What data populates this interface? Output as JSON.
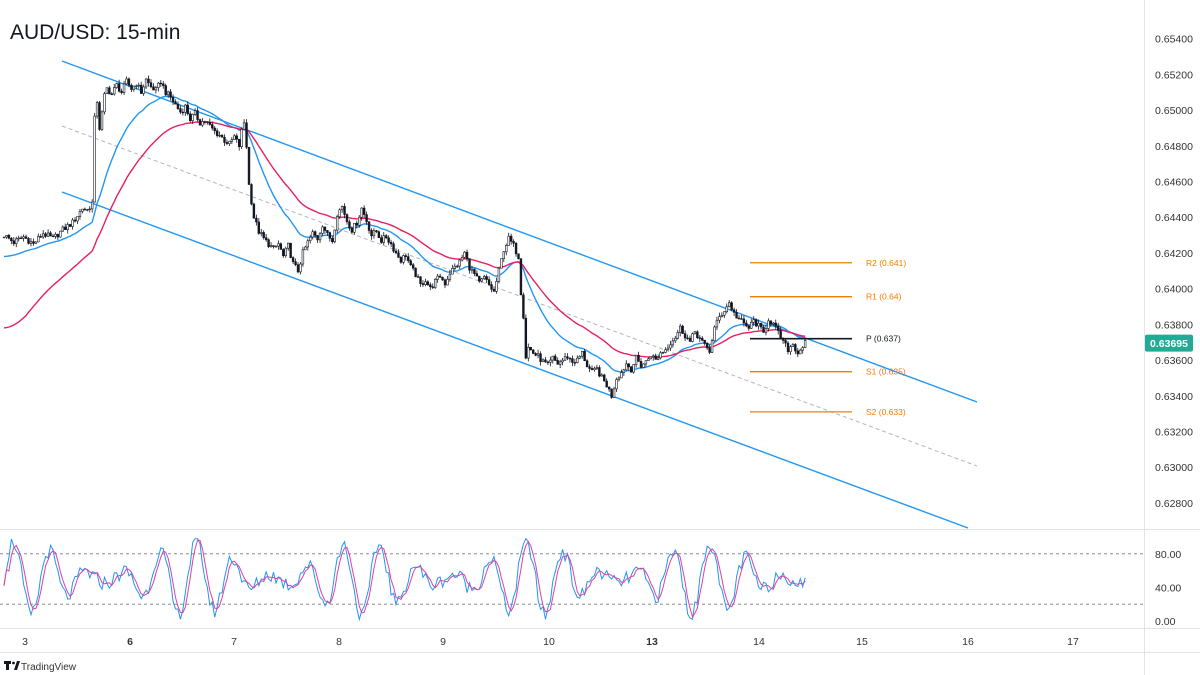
{
  "title": "AUD/USD: 15-min",
  "brand": "TradingView",
  "chart_data": {
    "type": "candlestick",
    "price_axis": {
      "range": [
        0.6271,
        0.6551
      ],
      "ticks": [
        "0.65400",
        "0.65200",
        "0.65000",
        "0.64800",
        "0.64600",
        "0.64400",
        "0.64200",
        "0.64000",
        "0.63800",
        "0.63600",
        "0.63400",
        "0.63200",
        "0.63000",
        "0.62800"
      ],
      "current_price": "0.63695",
      "current_price_color": "#22ab94"
    },
    "date_axis": {
      "ticks": [
        {
          "label": "3",
          "bold": false
        },
        {
          "label": "6",
          "bold": true
        },
        {
          "label": "7",
          "bold": false
        },
        {
          "label": "8",
          "bold": false
        },
        {
          "label": "9",
          "bold": false
        },
        {
          "label": "10",
          "bold": false
        },
        {
          "label": "13",
          "bold": true
        },
        {
          "label": "14",
          "bold": false
        },
        {
          "label": "15",
          "bold": false
        },
        {
          "label": "16",
          "bold": false
        },
        {
          "label": "17",
          "bold": false
        }
      ]
    },
    "pivots": [
      {
        "label": "R2 (0.641)",
        "value": 0.64145,
        "color": "#f57c00"
      },
      {
        "label": "R1 (0.64)",
        "value": 0.63955,
        "color": "#f57c00"
      },
      {
        "label": "P (0.637)",
        "value": 0.6372,
        "color": "#131722"
      },
      {
        "label": "S1 (0.635)",
        "value": 0.63535,
        "color": "#f57c00"
      },
      {
        "label": "S2 (0.633)",
        "value": 0.6331,
        "color": "#f57c00"
      }
    ],
    "price_path": [
      [
        0,
        0.643
      ],
      [
        4,
        0.6426
      ],
      [
        8,
        0.6429
      ],
      [
        12,
        0.6425
      ],
      [
        16,
        0.6431
      ],
      [
        20,
        0.6428
      ],
      [
        24,
        0.6433
      ],
      [
        28,
        0.6437
      ],
      [
        30,
        0.6441
      ],
      [
        32,
        0.6445
      ],
      [
        34,
        0.6444
      ],
      [
        36,
        0.6448
      ],
      [
        37,
        0.6495
      ],
      [
        38,
        0.6505
      ],
      [
        39,
        0.649
      ],
      [
        40,
        0.6498
      ],
      [
        41,
        0.6508
      ],
      [
        42,
        0.6512
      ],
      [
        44,
        0.6509
      ],
      [
        46,
        0.6514
      ],
      [
        48,
        0.651
      ],
      [
        50,
        0.6516
      ],
      [
        52,
        0.6512
      ],
      [
        54,
        0.6515
      ],
      [
        56,
        0.651
      ],
      [
        58,
        0.6517
      ],
      [
        60,
        0.6513
      ],
      [
        62,
        0.6511
      ],
      [
        64,
        0.6516
      ],
      [
        66,
        0.651
      ],
      [
        68,
        0.6507
      ],
      [
        70,
        0.6503
      ],
      [
        72,
        0.6499
      ],
      [
        74,
        0.6502
      ],
      [
        76,
        0.6495
      ],
      [
        78,
        0.6498
      ],
      [
        80,
        0.6493
      ],
      [
        82,
        0.6494
      ],
      [
        84,
        0.6491
      ],
      [
        86,
        0.6488
      ],
      [
        88,
        0.6486
      ],
      [
        90,
        0.6483
      ],
      [
        92,
        0.6481
      ],
      [
        94,
        0.6485
      ],
      [
        96,
        0.648
      ],
      [
        97,
        0.6488
      ],
      [
        98,
        0.6493
      ],
      [
        99,
        0.648
      ],
      [
        100,
        0.6458
      ],
      [
        102,
        0.644
      ],
      [
        104,
        0.6432
      ],
      [
        106,
        0.6428
      ],
      [
        108,
        0.6425
      ],
      [
        110,
        0.6422
      ],
      [
        112,
        0.6425
      ],
      [
        114,
        0.6418
      ],
      [
        116,
        0.6424
      ],
      [
        118,
        0.6414
      ],
      [
        120,
        0.641
      ],
      [
        122,
        0.642
      ],
      [
        124,
        0.6426
      ],
      [
        126,
        0.6431
      ],
      [
        128,
        0.6428
      ],
      [
        130,
        0.6436
      ],
      [
        132,
        0.643
      ],
      [
        134,
        0.6427
      ],
      [
        136,
        0.6442
      ],
      [
        138,
        0.6446
      ],
      [
        140,
        0.6438
      ],
      [
        142,
        0.6433
      ],
      [
        144,
        0.6437
      ],
      [
        146,
        0.6445
      ],
      [
        148,
        0.6438
      ],
      [
        150,
        0.643
      ],
      [
        152,
        0.6432
      ],
      [
        154,
        0.6427
      ],
      [
        156,
        0.6429
      ],
      [
        158,
        0.6425
      ],
      [
        160,
        0.642
      ],
      [
        162,
        0.6416
      ],
      [
        164,
        0.6419
      ],
      [
        166,
        0.6412
      ],
      [
        168,
        0.6408
      ],
      [
        170,
        0.6402
      ],
      [
        172,
        0.6405
      ],
      [
        174,
        0.64
      ],
      [
        176,
        0.6404
      ],
      [
        178,
        0.6407
      ],
      [
        180,
        0.6403
      ],
      [
        182,
        0.6409
      ],
      [
        184,
        0.6412
      ],
      [
        186,
        0.6415
      ],
      [
        188,
        0.642
      ],
      [
        190,
        0.6412
      ],
      [
        192,
        0.6408
      ],
      [
        194,
        0.6403
      ],
      [
        196,
        0.6406
      ],
      [
        198,
        0.6402
      ],
      [
        200,
        0.6398
      ],
      [
        202,
        0.641
      ],
      [
        204,
        0.6422
      ],
      [
        206,
        0.6428
      ],
      [
        208,
        0.6424
      ],
      [
        210,
        0.6418
      ],
      [
        211,
        0.6398
      ],
      [
        212,
        0.6385
      ],
      [
        213,
        0.6362
      ],
      [
        214,
        0.6367
      ],
      [
        216,
        0.6364
      ],
      [
        218,
        0.6362
      ],
      [
        220,
        0.6359
      ],
      [
        222,
        0.6357
      ],
      [
        224,
        0.6361
      ],
      [
        226,
        0.6358
      ],
      [
        228,
        0.636
      ],
      [
        230,
        0.6362
      ],
      [
        232,
        0.6359
      ],
      [
        234,
        0.636
      ],
      [
        236,
        0.6364
      ],
      [
        238,
        0.6357
      ],
      [
        240,
        0.6353
      ],
      [
        242,
        0.6355
      ],
      [
        244,
        0.635
      ],
      [
        246,
        0.6346
      ],
      [
        248,
        0.634
      ],
      [
        250,
        0.635
      ],
      [
        252,
        0.6353
      ],
      [
        254,
        0.6358
      ],
      [
        256,
        0.6355
      ],
      [
        258,
        0.6361
      ],
      [
        260,
        0.6357
      ],
      [
        262,
        0.6359
      ],
      [
        264,
        0.6363
      ],
      [
        266,
        0.636
      ],
      [
        268,
        0.6364
      ],
      [
        270,
        0.6366
      ],
      [
        272,
        0.637
      ],
      [
        274,
        0.6373
      ],
      [
        276,
        0.6378
      ],
      [
        278,
        0.6374
      ],
      [
        280,
        0.637
      ],
      [
        282,
        0.6376
      ],
      [
        284,
        0.6372
      ],
      [
        286,
        0.6368
      ],
      [
        288,
        0.6365
      ],
      [
        290,
        0.6378
      ],
      [
        292,
        0.6384
      ],
      [
        294,
        0.6388
      ],
      [
        296,
        0.6392
      ],
      [
        298,
        0.6386
      ],
      [
        300,
        0.6383
      ],
      [
        302,
        0.638
      ],
      [
        304,
        0.6378
      ],
      [
        306,
        0.6382
      ],
      [
        308,
        0.6379
      ],
      [
        310,
        0.6375
      ],
      [
        312,
        0.6383
      ],
      [
        314,
        0.638
      ],
      [
        316,
        0.6375
      ],
      [
        318,
        0.637
      ],
      [
        320,
        0.6366
      ],
      [
        322,
        0.6369
      ],
      [
        324,
        0.6364
      ],
      [
        326,
        0.6368
      ],
      [
        327,
        0.63695
      ]
    ],
    "rsi_axis": {
      "ticks": [
        "80.00",
        "40.00",
        "0.00"
      ]
    },
    "brand_color": "#2962ff"
  }
}
